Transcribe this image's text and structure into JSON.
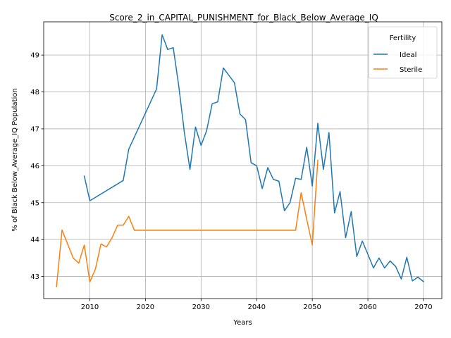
{
  "chart_data": {
    "type": "line",
    "title": "Score_2_in_CAPITAL_PUNISHMENT_for_Black_Below_Average_IQ",
    "xlabel": "Years",
    "ylabel": "% of Black Below_Average_IQ Population",
    "xlim": [
      2001.7,
      2073.3
    ],
    "ylim": [
      42.4,
      49.9
    ],
    "xticks": [
      2010,
      2020,
      2030,
      2040,
      2050,
      2060,
      2070
    ],
    "yticks": [
      43,
      44,
      45,
      46,
      47,
      48,
      49
    ],
    "grid": true,
    "legend": {
      "title": "Fertility",
      "placement": "top-right"
    },
    "series": [
      {
        "name": "Ideal",
        "color": "#1f77b4",
        "points": [
          [
            2009,
            45.72
          ],
          [
            2010,
            45.05
          ],
          [
            2016,
            45.6
          ],
          [
            2017,
            46.45
          ],
          [
            2022,
            48.08
          ],
          [
            2023,
            49.55
          ],
          [
            2024,
            49.15
          ],
          [
            2025,
            49.2
          ],
          [
            2026,
            48.15
          ],
          [
            2027,
            46.9
          ],
          [
            2028,
            45.9
          ],
          [
            2029,
            47.05
          ],
          [
            2030,
            46.55
          ],
          [
            2031,
            46.95
          ],
          [
            2032,
            47.68
          ],
          [
            2033,
            47.73
          ],
          [
            2034,
            48.65
          ],
          [
            2035,
            48.45
          ],
          [
            2036,
            48.25
          ],
          [
            2037,
            47.4
          ],
          [
            2038,
            47.25
          ],
          [
            2039,
            46.08
          ],
          [
            2040,
            46.0
          ],
          [
            2041,
            45.38
          ],
          [
            2042,
            45.95
          ],
          [
            2043,
            45.63
          ],
          [
            2044,
            45.58
          ],
          [
            2045,
            44.78
          ],
          [
            2046,
            45.0
          ],
          [
            2047,
            45.66
          ],
          [
            2048,
            45.63
          ],
          [
            2049,
            46.5
          ],
          [
            2050,
            45.45
          ],
          [
            2051,
            47.15
          ],
          [
            2052,
            45.9
          ],
          [
            2053,
            46.9
          ],
          [
            2054,
            44.72
          ],
          [
            2055,
            45.3
          ],
          [
            2056,
            44.05
          ],
          [
            2057,
            44.76
          ],
          [
            2058,
            43.54
          ],
          [
            2059,
            43.96
          ],
          [
            2060,
            43.6
          ],
          [
            2061,
            43.23
          ],
          [
            2062,
            43.5
          ],
          [
            2063,
            43.23
          ],
          [
            2064,
            43.42
          ],
          [
            2065,
            43.27
          ],
          [
            2066,
            42.93
          ],
          [
            2067,
            43.52
          ],
          [
            2068,
            42.88
          ],
          [
            2069,
            42.98
          ],
          [
            2070,
            42.86
          ]
        ]
      },
      {
        "name": "Sterile",
        "color": "#ff7f0e",
        "points": [
          [
            2004,
            42.72
          ],
          [
            2005,
            44.26
          ],
          [
            2006,
            43.88
          ],
          [
            2007,
            43.5
          ],
          [
            2008,
            43.36
          ],
          [
            2009,
            43.85
          ],
          [
            2010,
            42.85
          ],
          [
            2011,
            43.2
          ],
          [
            2012,
            43.88
          ],
          [
            2013,
            43.8
          ],
          [
            2014,
            44.05
          ],
          [
            2015,
            44.39
          ],
          [
            2016,
            44.39
          ],
          [
            2017,
            44.63
          ],
          [
            2018,
            44.25
          ],
          [
            2047,
            44.25
          ],
          [
            2048,
            45.27
          ],
          [
            2049,
            44.55
          ],
          [
            2050,
            43.85
          ],
          [
            2051,
            46.15
          ]
        ]
      }
    ]
  }
}
